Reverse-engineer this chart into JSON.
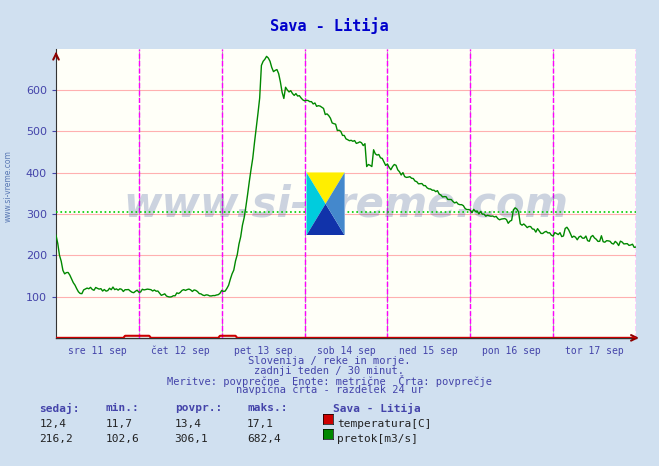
{
  "title": "Sava - Litija",
  "bg_color": "#d0e0f0",
  "plot_bg_color": "#fffff8",
  "grid_color_h": "#ffb0b0",
  "avg_line_color": "#00cc00",
  "avg_line_value": 306.1,
  "ylim": [
    0,
    700
  ],
  "yticks": [
    100,
    200,
    300,
    400,
    500,
    600
  ],
  "tick_color": "#4444aa",
  "title_color": "#0000cc",
  "vline_color": "#ff00ff",
  "vgrid_color": "#aaaaaa",
  "temp_color": "#cc0000",
  "flow_color": "#008800",
  "watermark_text": "www.si-vreme.com",
  "watermark_color": "#1a3a8a",
  "watermark_alpha": 0.22,
  "sidebar_text": "www.si-vreme.com",
  "sidebar_color": "#4466aa",
  "bottom_text1": "Slovenija / reke in morje.",
  "bottom_text2": "zadnji teden / 30 minut.",
  "bottom_text3": "Meritve: povprečne  Enote: metrične  Črta: povprečje",
  "bottom_text4": "navpična črta - razdelek 24 ur",
  "table_headers": [
    "sedaj:",
    "min.:",
    "povpr.:",
    "maks.:"
  ],
  "table_values_temp": [
    "12,4",
    "11,7",
    "13,4",
    "17,1"
  ],
  "table_values_flow": [
    "216,2",
    "102,6",
    "306,1",
    "682,4"
  ],
  "legend_station": "Sava - Litija",
  "legend_temp": "temperatura[C]",
  "legend_flow": "pretok[m3/s]",
  "n_points": 337,
  "x_day_labels": [
    "sre 11 sep",
    "čet 12 sep",
    "pet 13 sep",
    "sob 14 sep",
    "ned 15 sep",
    "pon 16 sep",
    "tor 17 sep"
  ],
  "x_day_positions": [
    24,
    72,
    120,
    168,
    216,
    264,
    312
  ],
  "vline_positions": [
    48,
    96,
    144,
    192,
    240,
    288,
    336
  ],
  "vgrid_positions": [
    48,
    96,
    144,
    192,
    240,
    288
  ]
}
